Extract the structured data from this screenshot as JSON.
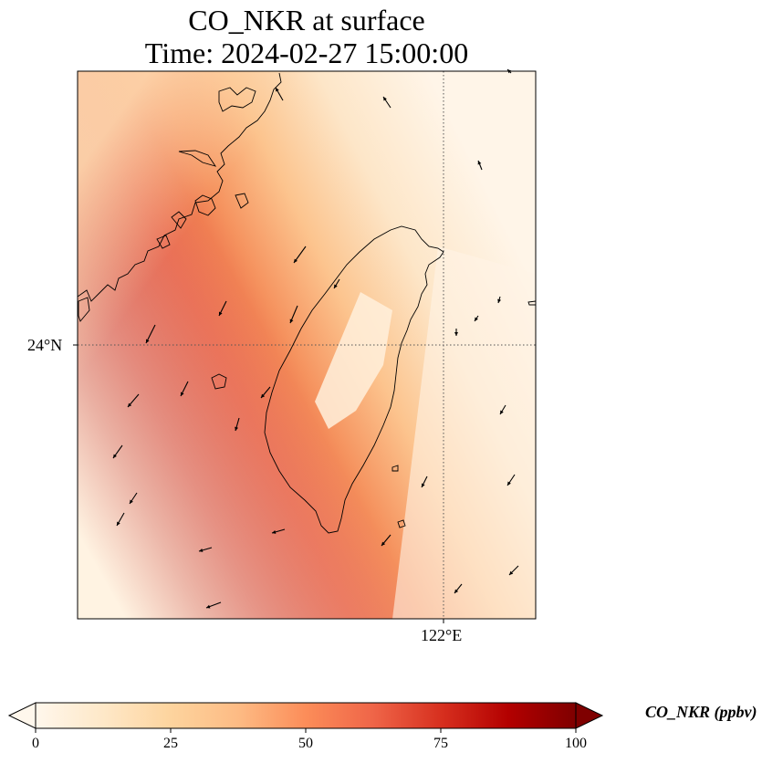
{
  "title": {
    "line1": "CO_NKR at surface",
    "line2": "Time: 2024-02-27 15:00:00"
  },
  "map": {
    "variable": "CO_NKR",
    "level": "surface",
    "lat_gridline_label": "24°N",
    "lon_gridline_label": "122°E",
    "lat_gridline_value": 24,
    "lon_gridline_value": 122,
    "colormap": "OrRd",
    "features": [
      "coastline",
      "wind-vectors",
      "gridlines"
    ]
  },
  "colorbar": {
    "label": "CO_NKR (ppbv)",
    "ticks": [
      "0",
      "25",
      "50",
      "75",
      "100"
    ],
    "min": 0,
    "max": 100,
    "extend": "both",
    "colors": [
      "#fff7ec",
      "#fee8c8",
      "#fdd49e",
      "#fdbb84",
      "#fc8d59",
      "#ef6548",
      "#d7301f",
      "#b30000",
      "#7f0000"
    ]
  }
}
